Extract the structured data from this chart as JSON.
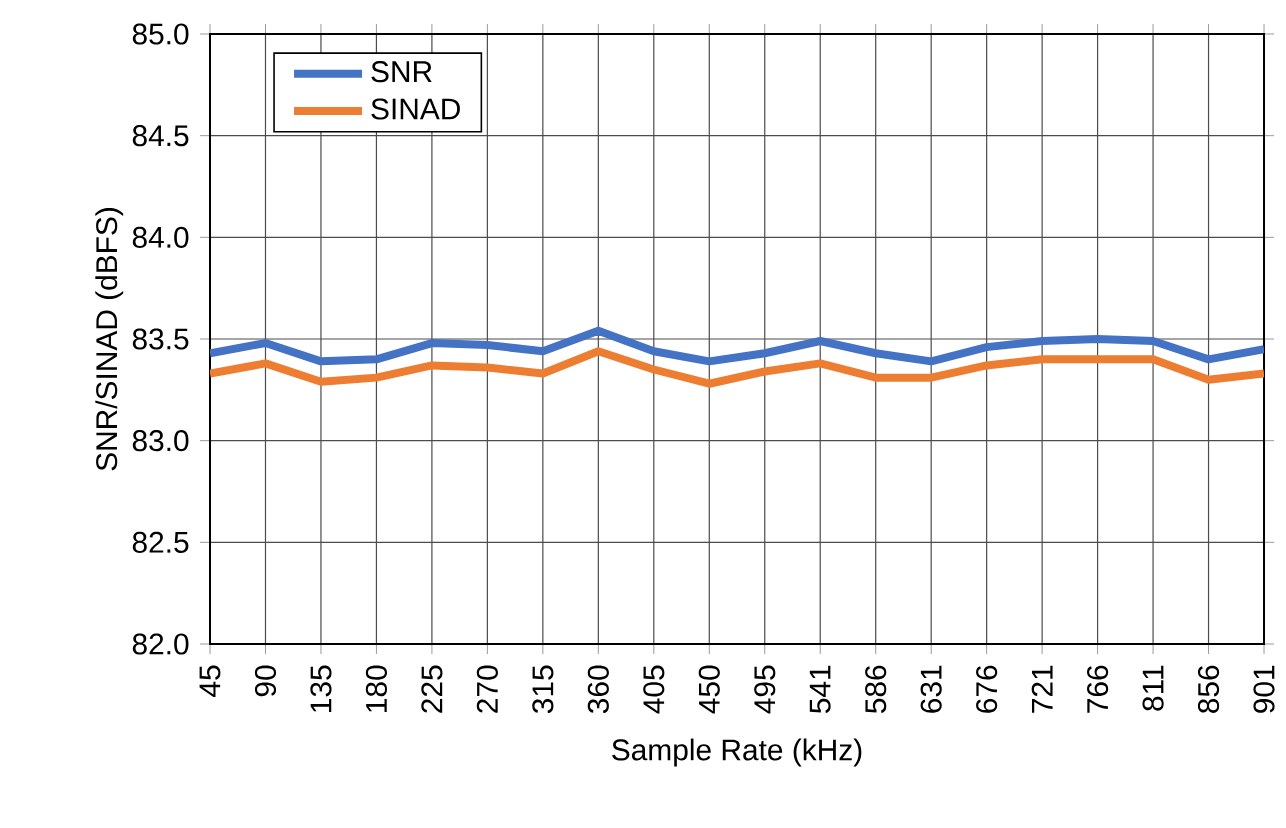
{
  "chart_data": {
    "type": "line",
    "xlabel": "Sample Rate (kHz)",
    "ylabel": "SNR/SINAD (dBFS)",
    "categories": [
      "45",
      "90",
      "135",
      "180",
      "225",
      "270",
      "315",
      "360",
      "405",
      "450",
      "495",
      "541",
      "586",
      "631",
      "676",
      "721",
      "766",
      "811",
      "856",
      "901"
    ],
    "series": [
      {
        "name": "SNR",
        "color": "#4472c4",
        "values": [
          83.43,
          83.48,
          83.39,
          83.4,
          83.48,
          83.47,
          83.44,
          83.54,
          83.44,
          83.39,
          83.43,
          83.49,
          83.43,
          83.39,
          83.46,
          83.49,
          83.5,
          83.49,
          83.4,
          83.45
        ]
      },
      {
        "name": "SINAD",
        "color": "#ed7d31",
        "values": [
          83.33,
          83.38,
          83.29,
          83.31,
          83.37,
          83.36,
          83.33,
          83.44,
          83.35,
          83.28,
          83.34,
          83.38,
          83.31,
          83.31,
          83.37,
          83.4,
          83.4,
          83.4,
          83.3,
          83.33
        ]
      }
    ],
    "ylim": [
      82.0,
      85.0
    ],
    "yticks": [
      {
        "value": 82.0,
        "label": "82.0"
      },
      {
        "value": 82.5,
        "label": "82.5"
      },
      {
        "value": 83.0,
        "label": "83.0"
      },
      {
        "value": 83.5,
        "label": "83.5"
      },
      {
        "value": 84.0,
        "label": "84.0"
      },
      {
        "value": 84.5,
        "label": "84.5"
      },
      {
        "value": 85.0,
        "label": "85.0"
      }
    ],
    "grid": true,
    "legend": "top left",
    "marker": "none",
    "line_style": "solid"
  }
}
